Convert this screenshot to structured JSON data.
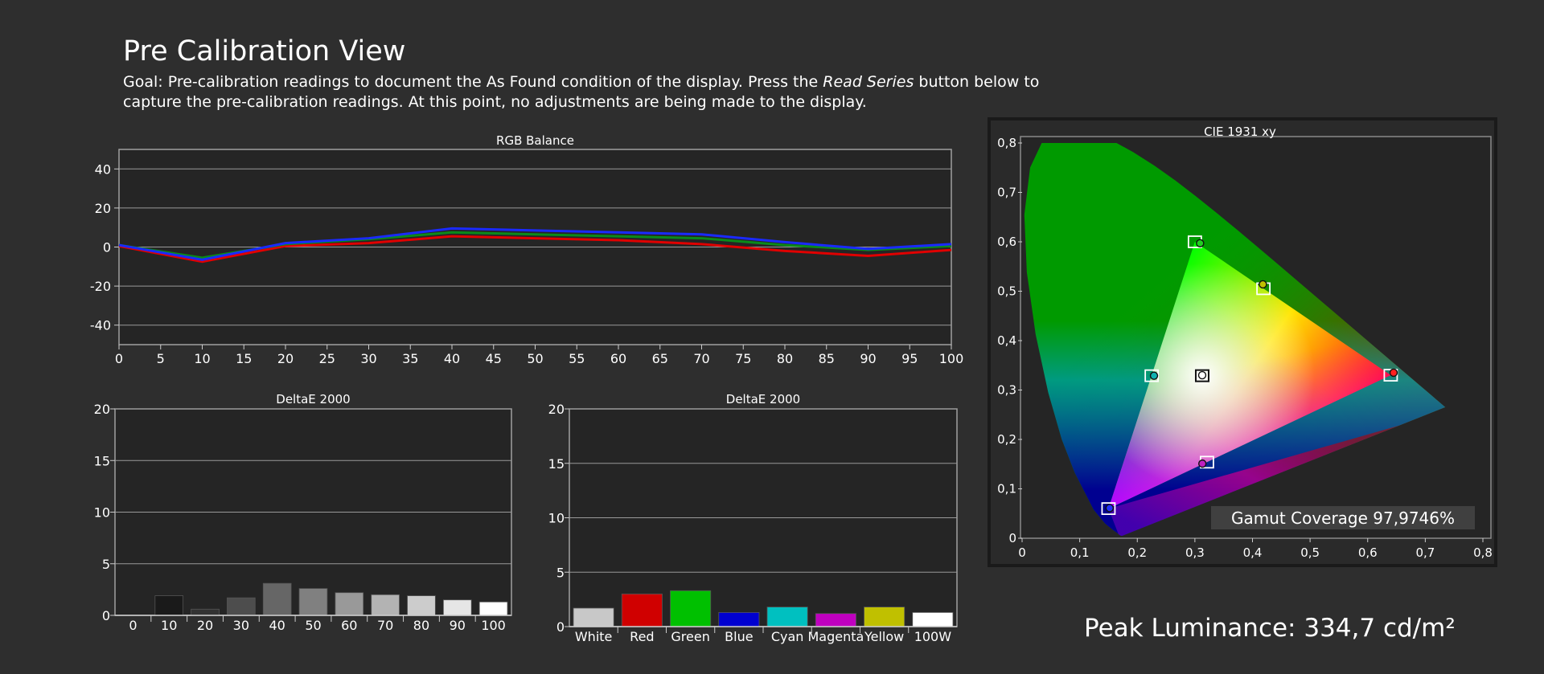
{
  "header": {
    "title": "Pre Calibration View",
    "goal_prefix": "Goal: Pre-calibration readings to document the As Found condition of the display. Press the ",
    "goal_emphasis": "Read Series",
    "goal_suffix": " button below to capture the pre-calibration readings. At this point, no adjustments are being made to the display."
  },
  "peak_luminance": "Peak Luminance: 334,7 cd/m²",
  "chart_data": [
    {
      "type": "line",
      "title": "RGB Balance",
      "xlabel": "",
      "ylabel": "",
      "xlim": [
        0,
        100
      ],
      "ylim": [
        -50,
        50
      ],
      "x_ticks": [
        0,
        5,
        10,
        15,
        20,
        25,
        30,
        35,
        40,
        45,
        50,
        55,
        60,
        65,
        70,
        75,
        80,
        85,
        90,
        95,
        100
      ],
      "y_ticks": [
        40,
        20,
        0,
        -20,
        -40
      ],
      "grid": true,
      "x": [
        0,
        10,
        20,
        30,
        40,
        50,
        60,
        70,
        80,
        90,
        100
      ],
      "series": [
        {
          "color": "#e00000",
          "values": [
            0.5,
            -7.5,
            0.5,
            2,
            5.5,
            4.5,
            3.5,
            1.5,
            -2,
            -4.5,
            -1.5
          ]
        },
        {
          "color": "#0a8a1a",
          "values": [
            1,
            -5.5,
            1.5,
            4,
            7.5,
            6.5,
            5.5,
            4.5,
            1,
            -1.5,
            0.5
          ]
        },
        {
          "color": "#1a2aff",
          "values": [
            1,
            -6.5,
            2,
            4.5,
            9.5,
            8.5,
            7.5,
            6.5,
            2.5,
            -1,
            1.5
          ]
        }
      ]
    },
    {
      "type": "bar",
      "title": "DeltaE 2000",
      "categories": [
        "0",
        "10",
        "20",
        "30",
        "40",
        "50",
        "60",
        "70",
        "80",
        "90",
        "100"
      ],
      "values": [
        0,
        1.9,
        0.6,
        1.7,
        3.1,
        2.6,
        2.2,
        2.0,
        1.9,
        1.5,
        1.3
      ],
      "colors": [
        "#000000",
        "#1a1a1a",
        "#333333",
        "#4d4d4d",
        "#666666",
        "#808080",
        "#999999",
        "#b3b3b3",
        "#cccccc",
        "#e6e6e6",
        "#ffffff"
      ],
      "ylim": [
        0,
        20
      ],
      "y_ticks": [
        0,
        5,
        10,
        15,
        20
      ],
      "grid": true
    },
    {
      "type": "bar",
      "title": "DeltaE 2000",
      "categories": [
        "White",
        "Red",
        "Green",
        "Blue",
        "Cyan",
        "Magenta",
        "Yellow",
        "100W"
      ],
      "values": [
        1.7,
        3.0,
        3.3,
        1.3,
        1.8,
        1.2,
        1.8,
        1.3
      ],
      "colors": [
        "#c8c8c8",
        "#d00000",
        "#00c000",
        "#0000d0",
        "#00c0c0",
        "#c000c0",
        "#c0c000",
        "#ffffff"
      ],
      "ylim": [
        0,
        20
      ],
      "y_ticks": [
        0,
        5,
        10,
        15,
        20
      ],
      "grid": true
    },
    {
      "type": "scatter",
      "title": "CIE 1931 xy",
      "xlim": [
        0,
        0.8
      ],
      "ylim": [
        0,
        0.8
      ],
      "x_ticks": [
        "0",
        "0,1",
        "0,2",
        "0,3",
        "0,4",
        "0,5",
        "0,6",
        "0,7",
        "0,8"
      ],
      "y_ticks": [
        "0",
        "0,1",
        "0,2",
        "0,3",
        "0,4",
        "0,5",
        "0,6",
        "0,7",
        "0,8"
      ],
      "targets": [
        {
          "name": "Red",
          "x": 0.64,
          "y": 0.33
        },
        {
          "name": "Green",
          "x": 0.3,
          "y": 0.6
        },
        {
          "name": "Blue",
          "x": 0.15,
          "y": 0.06
        },
        {
          "name": "Cyan",
          "x": 0.225,
          "y": 0.329
        },
        {
          "name": "Magenta",
          "x": 0.321,
          "y": 0.154
        },
        {
          "name": "Yellow",
          "x": 0.419,
          "y": 0.505
        },
        {
          "name": "White",
          "x": 0.3127,
          "y": 0.329
        }
      ],
      "measured": [
        {
          "name": "Red",
          "x": 0.645,
          "y": 0.335
        },
        {
          "name": "Green",
          "x": 0.309,
          "y": 0.597
        },
        {
          "name": "Blue",
          "x": 0.152,
          "y": 0.061
        },
        {
          "name": "Cyan",
          "x": 0.229,
          "y": 0.329
        },
        {
          "name": "Magenta",
          "x": 0.313,
          "y": 0.151
        },
        {
          "name": "Yellow",
          "x": 0.418,
          "y": 0.514
        },
        {
          "name": "White",
          "x": 0.3127,
          "y": 0.33
        }
      ],
      "gamut_coverage": "Gamut Coverage 97,9746%"
    }
  ]
}
